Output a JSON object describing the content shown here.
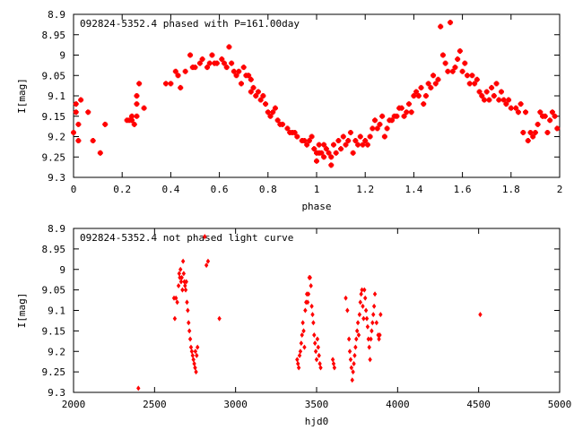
{
  "chart_data": [
    {
      "type": "scatter",
      "title": "092824-5352.4 phased with P=161.00day",
      "xlabel": "phase",
      "ylabel": "I[mag]",
      "xlim": [
        0,
        2
      ],
      "ylim": [
        8.9,
        9.3
      ],
      "y_inverted": true,
      "x_ticks": [
        "0",
        "0.2",
        "0.4",
        "0.6",
        "0.8",
        "1",
        "1.2",
        "1.4",
        "1.6",
        "1.8",
        "2"
      ],
      "y_ticks": [
        "8.9",
        "8.95",
        "9",
        "9.05",
        "9.1",
        "9.15",
        "9.2",
        "9.25",
        "9.3"
      ],
      "grid": false,
      "marker_color": "#ff0000",
      "points": [
        [
          0.0,
          9.19
        ],
        [
          0.01,
          9.12
        ],
        [
          0.01,
          9.14
        ],
        [
          0.02,
          9.17
        ],
        [
          0.02,
          9.21
        ],
        [
          0.03,
          9.11
        ],
        [
          0.06,
          9.14
        ],
        [
          0.08,
          9.21
        ],
        [
          0.11,
          9.24
        ],
        [
          0.13,
          9.17
        ],
        [
          0.22,
          9.16
        ],
        [
          0.23,
          9.16
        ],
        [
          0.24,
          9.16
        ],
        [
          0.24,
          9.15
        ],
        [
          0.25,
          9.17
        ],
        [
          0.26,
          9.12
        ],
        [
          0.26,
          9.1
        ],
        [
          0.26,
          9.15
        ],
        [
          0.27,
          9.07
        ],
        [
          0.29,
          9.13
        ],
        [
          0.38,
          9.07
        ],
        [
          0.4,
          9.07
        ],
        [
          0.42,
          9.04
        ],
        [
          0.43,
          9.05
        ],
        [
          0.44,
          9.08
        ],
        [
          0.46,
          9.04
        ],
        [
          0.48,
          9.0
        ],
        [
          0.49,
          9.03
        ],
        [
          0.5,
          9.03
        ],
        [
          0.52,
          9.02
        ],
        [
          0.53,
          9.01
        ],
        [
          0.55,
          9.03
        ],
        [
          0.56,
          9.02
        ],
        [
          0.57,
          9.0
        ],
        [
          0.58,
          9.02
        ],
        [
          0.59,
          9.02
        ],
        [
          0.61,
          9.01
        ],
        [
          0.62,
          9.02
        ],
        [
          0.63,
          9.03
        ],
        [
          0.64,
          8.98
        ],
        [
          0.65,
          9.02
        ],
        [
          0.66,
          9.04
        ],
        [
          0.67,
          9.05
        ],
        [
          0.68,
          9.04
        ],
        [
          0.69,
          9.07
        ],
        [
          0.7,
          9.03
        ],
        [
          0.71,
          9.05
        ],
        [
          0.72,
          9.05
        ],
        [
          0.73,
          9.06
        ],
        [
          0.73,
          9.09
        ],
        [
          0.74,
          9.08
        ],
        [
          0.75,
          9.1
        ],
        [
          0.76,
          9.09
        ],
        [
          0.77,
          9.11
        ],
        [
          0.78,
          9.1
        ],
        [
          0.79,
          9.12
        ],
        [
          0.8,
          9.14
        ],
        [
          0.81,
          9.15
        ],
        [
          0.82,
          9.14
        ],
        [
          0.83,
          9.13
        ],
        [
          0.84,
          9.16
        ],
        [
          0.85,
          9.17
        ],
        [
          0.86,
          9.17
        ],
        [
          0.88,
          9.18
        ],
        [
          0.89,
          9.19
        ],
        [
          0.9,
          9.19
        ],
        [
          0.91,
          9.19
        ],
        [
          0.92,
          9.2
        ],
        [
          0.94,
          9.21
        ],
        [
          0.95,
          9.21
        ],
        [
          0.96,
          9.22
        ],
        [
          0.97,
          9.21
        ],
        [
          0.98,
          9.2
        ],
        [
          0.99,
          9.23
        ],
        [
          1.0,
          9.24
        ],
        [
          1.0,
          9.26
        ],
        [
          1.01,
          9.22
        ],
        [
          1.01,
          9.24
        ],
        [
          1.02,
          9.24
        ],
        [
          1.03,
          9.22
        ],
        [
          1.03,
          9.25
        ],
        [
          1.04,
          9.23
        ],
        [
          1.05,
          9.24
        ],
        [
          1.06,
          9.27
        ],
        [
          1.06,
          9.25
        ],
        [
          1.07,
          9.22
        ],
        [
          1.08,
          9.24
        ],
        [
          1.09,
          9.21
        ],
        [
          1.1,
          9.23
        ],
        [
          1.11,
          9.2
        ],
        [
          1.12,
          9.22
        ],
        [
          1.13,
          9.21
        ],
        [
          1.14,
          9.19
        ],
        [
          1.15,
          9.24
        ],
        [
          1.16,
          9.21
        ],
        [
          1.17,
          9.22
        ],
        [
          1.18,
          9.2
        ],
        [
          1.19,
          9.22
        ],
        [
          1.2,
          9.21
        ],
        [
          1.21,
          9.22
        ],
        [
          1.22,
          9.2
        ],
        [
          1.23,
          9.18
        ],
        [
          1.24,
          9.16
        ],
        [
          1.25,
          9.18
        ],
        [
          1.26,
          9.17
        ],
        [
          1.27,
          9.15
        ],
        [
          1.28,
          9.2
        ],
        [
          1.29,
          9.18
        ],
        [
          1.3,
          9.16
        ],
        [
          1.31,
          9.16
        ],
        [
          1.32,
          9.15
        ],
        [
          1.33,
          9.15
        ],
        [
          1.34,
          9.13
        ],
        [
          1.35,
          9.13
        ],
        [
          1.36,
          9.15
        ],
        [
          1.37,
          9.14
        ],
        [
          1.38,
          9.12
        ],
        [
          1.39,
          9.14
        ],
        [
          1.4,
          9.1
        ],
        [
          1.41,
          9.09
        ],
        [
          1.42,
          9.1
        ],
        [
          1.43,
          9.08
        ],
        [
          1.44,
          9.12
        ],
        [
          1.45,
          9.1
        ],
        [
          1.46,
          9.07
        ],
        [
          1.47,
          9.08
        ],
        [
          1.48,
          9.05
        ],
        [
          1.49,
          9.07
        ],
        [
          1.5,
          9.06
        ],
        [
          1.51,
          8.93
        ],
        [
          1.52,
          9.0
        ],
        [
          1.53,
          9.02
        ],
        [
          1.54,
          9.04
        ],
        [
          1.55,
          8.92
        ],
        [
          1.56,
          9.04
        ],
        [
          1.57,
          9.03
        ],
        [
          1.58,
          9.01
        ],
        [
          1.59,
          8.99
        ],
        [
          1.6,
          9.04
        ],
        [
          1.61,
          9.02
        ],
        [
          1.62,
          9.05
        ],
        [
          1.63,
          9.07
        ],
        [
          1.64,
          9.05
        ],
        [
          1.65,
          9.07
        ],
        [
          1.66,
          9.06
        ],
        [
          1.67,
          9.09
        ],
        [
          1.68,
          9.1
        ],
        [
          1.69,
          9.11
        ],
        [
          1.7,
          9.09
        ],
        [
          1.71,
          9.11
        ],
        [
          1.72,
          9.08
        ],
        [
          1.73,
          9.1
        ],
        [
          1.74,
          9.07
        ],
        [
          1.75,
          9.11
        ],
        [
          1.76,
          9.09
        ],
        [
          1.77,
          9.11
        ],
        [
          1.78,
          9.12
        ],
        [
          1.79,
          9.11
        ],
        [
          1.8,
          9.13
        ],
        [
          1.82,
          9.13
        ],
        [
          1.83,
          9.14
        ],
        [
          1.84,
          9.12
        ],
        [
          1.85,
          9.19
        ],
        [
          1.86,
          9.14
        ],
        [
          1.87,
          9.21
        ],
        [
          1.88,
          9.19
        ],
        [
          1.89,
          9.2
        ],
        [
          1.9,
          9.19
        ],
        [
          1.91,
          9.17
        ],
        [
          1.92,
          9.14
        ],
        [
          1.93,
          9.15
        ],
        [
          1.94,
          9.15
        ],
        [
          1.95,
          9.19
        ],
        [
          1.96,
          9.16
        ],
        [
          1.97,
          9.14
        ],
        [
          1.98,
          9.15
        ],
        [
          1.99,
          9.18
        ]
      ]
    },
    {
      "type": "scatter",
      "title": "092824-5352.4 not phased light curve",
      "xlabel": "hjd0",
      "ylabel": "I[mag]",
      "xlim": [
        2000,
        5000
      ],
      "ylim": [
        8.9,
        9.3
      ],
      "y_inverted": true,
      "x_ticks": [
        "2000",
        "2500",
        "3000",
        "3500",
        "4000",
        "4500",
        "5000"
      ],
      "y_ticks": [
        "8.9",
        "8.95",
        "9",
        "9.05",
        "9.1",
        "9.15",
        "9.2",
        "9.25",
        "9.3"
      ],
      "grid": false,
      "marker_color": "#ff0000",
      "points": [
        [
          2400,
          9.29
        ],
        [
          2620,
          9.07
        ],
        [
          2625,
          9.12
        ],
        [
          2632,
          9.07
        ],
        [
          2640,
          9.08
        ],
        [
          2648,
          9.04
        ],
        [
          2652,
          9.01
        ],
        [
          2656,
          9.02
        ],
        [
          2660,
          9.0
        ],
        [
          2664,
          9.03
        ],
        [
          2668,
          9.02
        ],
        [
          2672,
          9.05
        ],
        [
          2676,
          8.98
        ],
        [
          2680,
          9.01
        ],
        [
          2684,
          9.03
        ],
        [
          2688,
          9.04
        ],
        [
          2692,
          9.05
        ],
        [
          2696,
          9.03
        ],
        [
          2700,
          9.08
        ],
        [
          2705,
          9.1
        ],
        [
          2710,
          9.13
        ],
        [
          2715,
          9.15
        ],
        [
          2720,
          9.17
        ],
        [
          2725,
          9.19
        ],
        [
          2730,
          9.2
        ],
        [
          2735,
          9.21
        ],
        [
          2740,
          9.22
        ],
        [
          2745,
          9.23
        ],
        [
          2750,
          9.24
        ],
        [
          2752,
          9.2
        ],
        [
          2756,
          9.25
        ],
        [
          2760,
          9.21
        ],
        [
          2765,
          9.19
        ],
        [
          2810,
          8.92
        ],
        [
          2820,
          8.99
        ],
        [
          2830,
          8.98
        ],
        [
          2900,
          9.12
        ],
        [
          3380,
          9.22
        ],
        [
          3385,
          9.23
        ],
        [
          3390,
          9.24
        ],
        [
          3395,
          9.21
        ],
        [
          3400,
          9.2
        ],
        [
          3405,
          9.18
        ],
        [
          3410,
          9.16
        ],
        [
          3415,
          9.13
        ],
        [
          3420,
          9.15
        ],
        [
          3425,
          9.19
        ],
        [
          3430,
          9.1
        ],
        [
          3435,
          9.08
        ],
        [
          3440,
          9.06
        ],
        [
          3445,
          9.08
        ],
        [
          3450,
          9.06
        ],
        [
          3455,
          9.02
        ],
        [
          3460,
          9.02
        ],
        [
          3465,
          9.04
        ],
        [
          3470,
          9.09
        ],
        [
          3475,
          9.11
        ],
        [
          3480,
          9.13
        ],
        [
          3485,
          9.16
        ],
        [
          3490,
          9.18
        ],
        [
          3495,
          9.2
        ],
        [
          3500,
          9.22
        ],
        [
          3505,
          9.17
        ],
        [
          3510,
          9.19
        ],
        [
          3515,
          9.21
        ],
        [
          3520,
          9.23
        ],
        [
          3525,
          9.24
        ],
        [
          3600,
          9.22
        ],
        [
          3605,
          9.23
        ],
        [
          3610,
          9.24
        ],
        [
          3680,
          9.07
        ],
        [
          3690,
          9.1
        ],
        [
          3700,
          9.17
        ],
        [
          3705,
          9.2
        ],
        [
          3710,
          9.22
        ],
        [
          3715,
          9.24
        ],
        [
          3720,
          9.27
        ],
        [
          3725,
          9.25
        ],
        [
          3730,
          9.23
        ],
        [
          3735,
          9.21
        ],
        [
          3740,
          9.19
        ],
        [
          3745,
          9.17
        ],
        [
          3750,
          9.15
        ],
        [
          3755,
          9.13
        ],
        [
          3760,
          9.16
        ],
        [
          3765,
          9.11
        ],
        [
          3770,
          9.08
        ],
        [
          3775,
          9.06
        ],
        [
          3780,
          9.05
        ],
        [
          3785,
          9.09
        ],
        [
          3790,
          9.12
        ],
        [
          3795,
          9.05
        ],
        [
          3800,
          9.07
        ],
        [
          3805,
          9.1
        ],
        [
          3810,
          9.12
        ],
        [
          3815,
          9.14
        ],
        [
          3820,
          9.17
        ],
        [
          3825,
          9.19
        ],
        [
          3830,
          9.22
        ],
        [
          3835,
          9.17
        ],
        [
          3840,
          9.15
        ],
        [
          3845,
          9.13
        ],
        [
          3850,
          9.11
        ],
        [
          3855,
          9.09
        ],
        [
          3860,
          9.06
        ],
        [
          3870,
          9.13
        ],
        [
          3880,
          9.16
        ],
        [
          3885,
          9.17
        ],
        [
          3890,
          9.16
        ],
        [
          3895,
          9.11
        ],
        [
          4510,
          9.11
        ]
      ]
    }
  ]
}
